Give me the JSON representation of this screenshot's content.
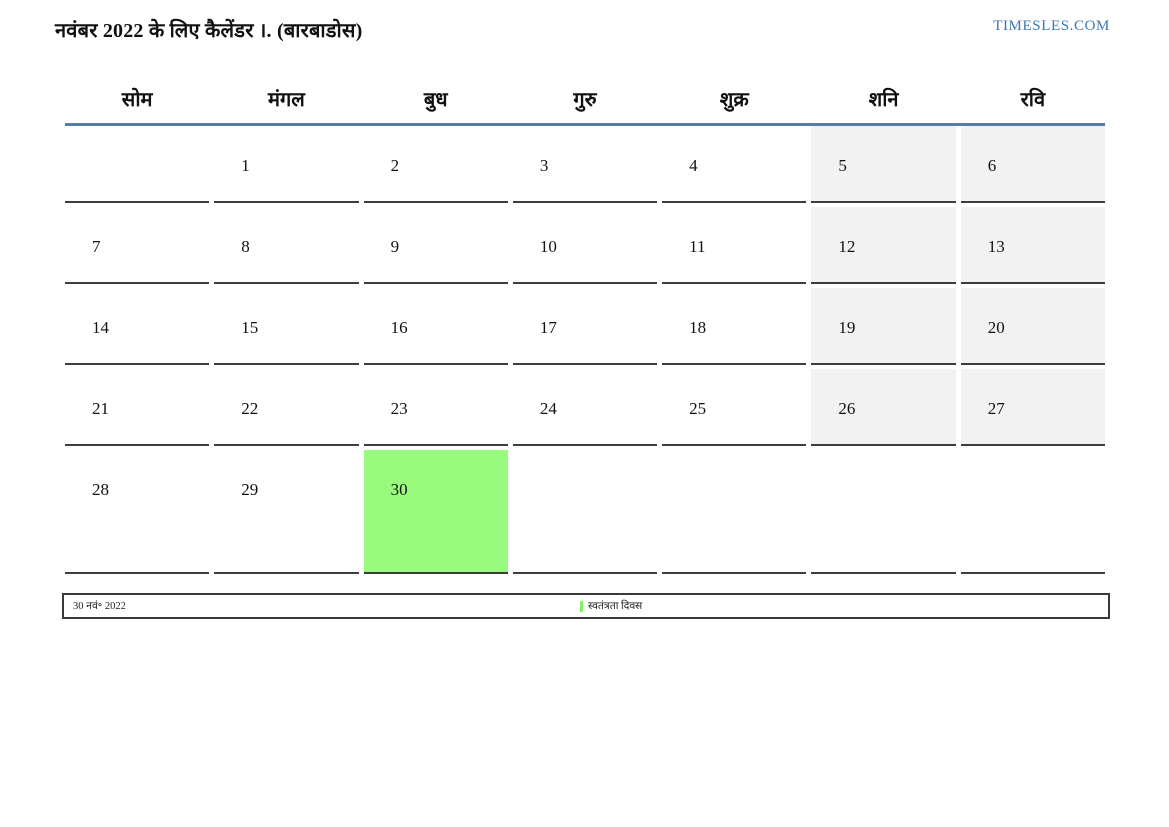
{
  "header": {
    "title": "नवंबर 2022 के लिए कैलेंडर ।. (बारबाडोस)",
    "site_link": "TIMESLES.COM"
  },
  "calendar": {
    "month": "नवंबर",
    "year": "2022",
    "weekdays": [
      "सोम",
      "मंगल",
      "बुध",
      "गुरु",
      "शुक्र",
      "शनि",
      "रवि"
    ],
    "weeks": [
      [
        "",
        "1",
        "2",
        "3",
        "4",
        "5",
        "6"
      ],
      [
        "7",
        "8",
        "9",
        "10",
        "11",
        "12",
        "13"
      ],
      [
        "14",
        "15",
        "16",
        "17",
        "18",
        "19",
        "20"
      ],
      [
        "21",
        "22",
        "23",
        "24",
        "25",
        "26",
        "27"
      ],
      [
        "28",
        "29",
        "30",
        "",
        "",
        "",
        ""
      ]
    ],
    "highlighted_date": "30"
  },
  "footer": {
    "date_label": "30 नवं॰ 2022",
    "legend_label": "स्वतंत्रता दिवस"
  },
  "colors": {
    "weekend_bg": "#f2f2f2",
    "holiday_bg": "#98fb7e",
    "legend_bar": "#86ef68",
    "header_line": "#5a7ba3",
    "site_link": "#3b76b4",
    "cell_border": "#3d3d3d",
    "footer_border": "#3a3a3a"
  }
}
